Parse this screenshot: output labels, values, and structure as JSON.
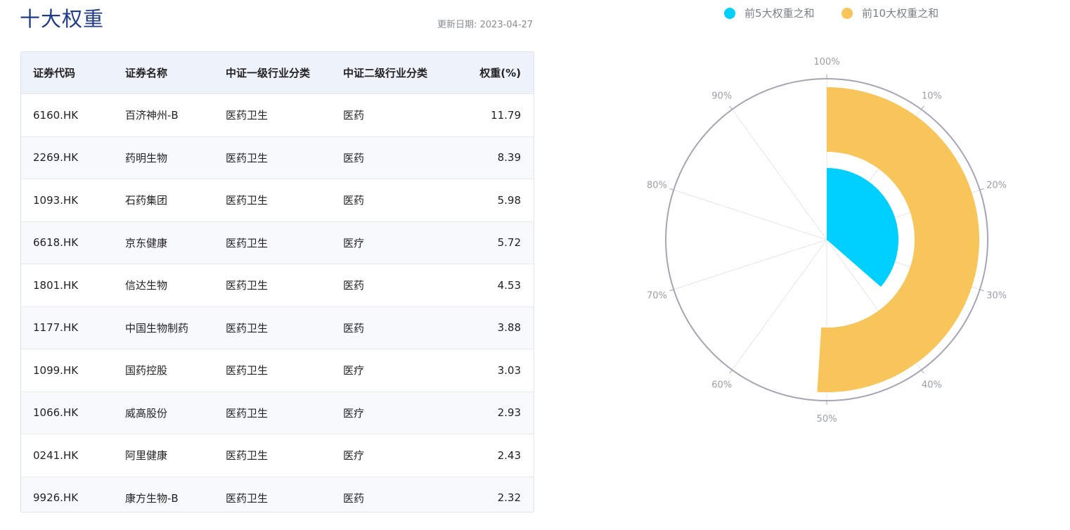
{
  "page": {
    "title": "十大权重",
    "update_text": "更新日期: 2023-04-27"
  },
  "table": {
    "headers": [
      "证券代码",
      "证券名称",
      "中证一级行业分类",
      "中证二级行业分类",
      "权重(%)"
    ],
    "rows": [
      [
        "6160.HK",
        "百济神州-B",
        "医药卫生",
        "医药",
        "11.79"
      ],
      [
        "2269.HK",
        "药明生物",
        "医药卫生",
        "医药",
        "8.39"
      ],
      [
        "1093.HK",
        "石药集团",
        "医药卫生",
        "医药",
        "5.98"
      ],
      [
        "6618.HK",
        "京东健康",
        "医药卫生",
        "医疗",
        "5.72"
      ],
      [
        "1801.HK",
        "信达生物",
        "医药卫生",
        "医药",
        "4.53"
      ],
      [
        "1177.HK",
        "中国生物制药",
        "医药卫生",
        "医药",
        "3.88"
      ],
      [
        "1099.HK",
        "国药控股",
        "医药卫生",
        "医疗",
        "3.03"
      ],
      [
        "1066.HK",
        "威高股份",
        "医药卫生",
        "医疗",
        "2.93"
      ],
      [
        "0241.HK",
        "阿里健康",
        "医药卫生",
        "医疗",
        "2.43"
      ],
      [
        "9926.HK",
        "康方生物-B",
        "医药卫生",
        "医药",
        "2.32"
      ]
    ]
  },
  "chart_data": {
    "type": "polar-bar",
    "series": [
      {
        "name": "前5大权重之和",
        "value": 36.41,
        "color": "#00d0ff"
      },
      {
        "name": "前10大权重之和",
        "value": 51.0,
        "color": "#f7c55a"
      }
    ],
    "angle_axis": {
      "min": 0,
      "max": 100,
      "unit": "%",
      "tick_labels": [
        "100%",
        "10%",
        "20%",
        "30%",
        "40%",
        "50%",
        "60%",
        "70%",
        "80%",
        "90%"
      ]
    },
    "legend_position": "top",
    "grid": true
  }
}
